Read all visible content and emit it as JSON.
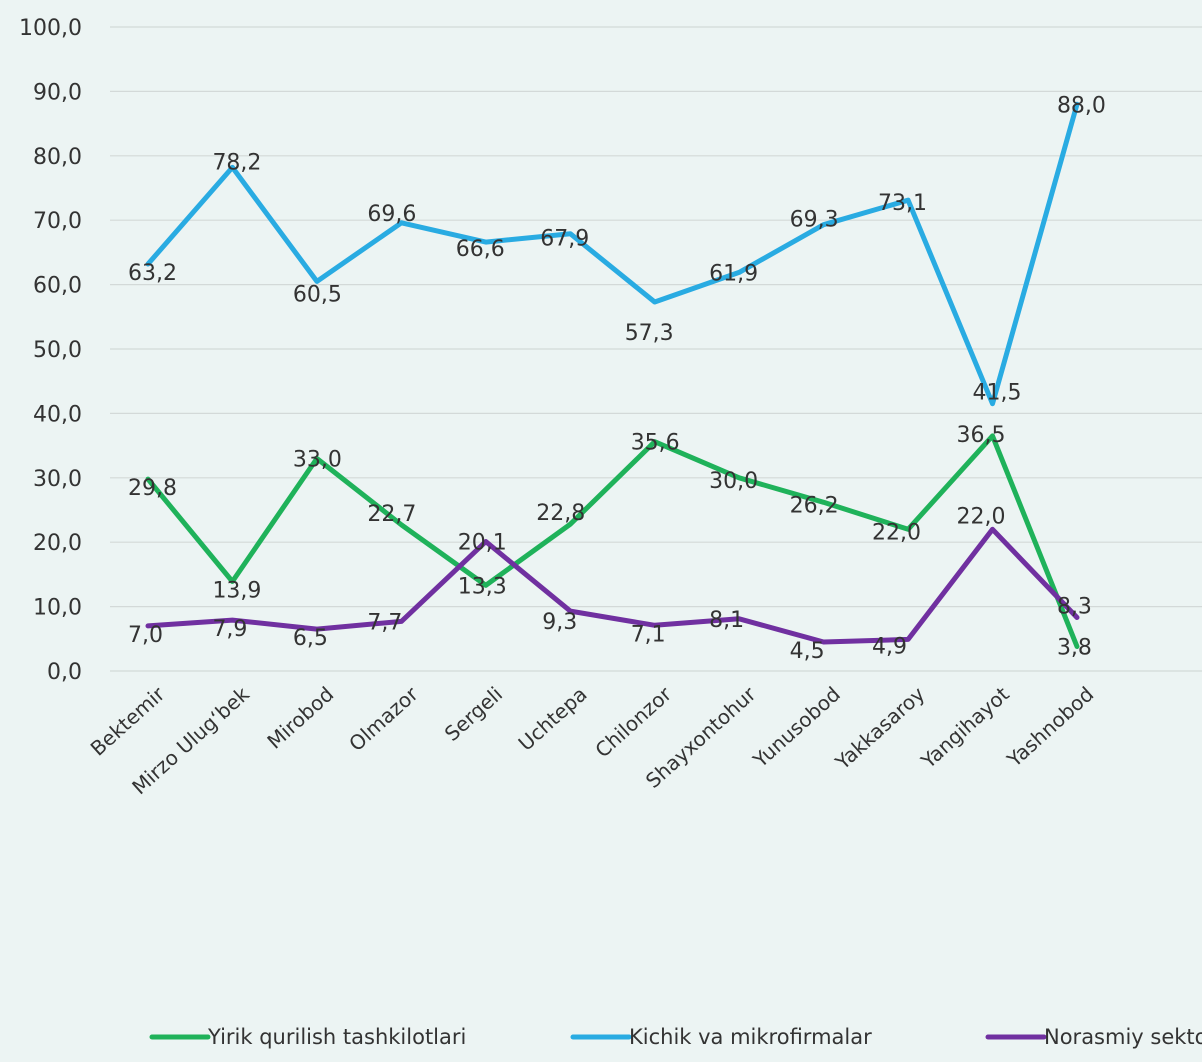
{
  "chart_data": {
    "type": "line",
    "categories": [
      "Bektemir",
      "Mirzo Ulug‘bek",
      "Mirobod",
      "Olmazor",
      "Sergeli",
      "Uchtepa",
      "Chilonzor",
      "Shayxontohur",
      "Yunusobod",
      "Yakkasaroy",
      "Yangihayot",
      "Yashnobod"
    ],
    "ylim": [
      0,
      100
    ],
    "yticks": [
      "0,0",
      "10,0",
      "20,0",
      "30,0",
      "40,0",
      "50,0",
      "60,0",
      "70,0",
      "80,0",
      "90,0",
      "100,0"
    ],
    "grid": true,
    "legend_position": "bottom",
    "series": [
      {
        "name": "Yirik qurilish tashkilotlari",
        "color": "#1fb25a",
        "values": [
          29.8,
          13.9,
          33.0,
          22.7,
          13.3,
          22.8,
          35.6,
          30.0,
          26.2,
          22.0,
          36.5,
          3.8
        ],
        "labels": [
          "29,8",
          "13,9",
          "33,0",
          "22,7",
          "13,3",
          "22,8",
          "35,6",
          "30,0",
          "26,2",
          "22,0",
          "36,5",
          "3,8"
        ]
      },
      {
        "name": "Kichik va mikrofirmalar",
        "color": "#29abe2",
        "values": [
          63.2,
          78.2,
          60.5,
          69.6,
          66.6,
          67.9,
          57.3,
          61.9,
          69.3,
          73.1,
          41.5,
          88.0
        ],
        "labels": [
          "63,2",
          "78,2",
          "60,5",
          "69,6",
          "66,6",
          "67,9",
          "57,3",
          "61,9",
          "69,3",
          "73,1",
          "41,5",
          "88,0"
        ]
      },
      {
        "name": "Norasmiy sektor",
        "color": "#7030a0",
        "values": [
          7.0,
          7.9,
          6.5,
          7.7,
          20.1,
          9.3,
          7.1,
          8.1,
          4.5,
          4.9,
          22.0,
          8.3
        ],
        "labels": [
          "7,0",
          "7,9",
          "6,5",
          "7,7",
          "20,1",
          "9,3",
          "7,1",
          "8,1",
          "4,5",
          "4,9",
          "22,0",
          "8,3"
        ]
      }
    ]
  }
}
